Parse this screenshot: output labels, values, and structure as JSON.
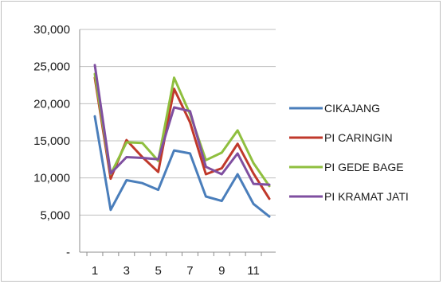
{
  "chart_data": {
    "type": "line",
    "title": "",
    "xlabel": "",
    "ylabel": "",
    "x": [
      1,
      2,
      3,
      4,
      5,
      6,
      7,
      8,
      9,
      10,
      11,
      12
    ],
    "x_tick_labels": [
      "1",
      "3",
      "5",
      "7",
      "9",
      "11"
    ],
    "x_tick_values": [
      1,
      3,
      5,
      7,
      9,
      11
    ],
    "ylim": [
      0,
      30000
    ],
    "y_tick_values": [
      0,
      5000,
      10000,
      15000,
      20000,
      25000,
      30000
    ],
    "y_tick_labels": [
      "-",
      "5,000",
      "10,000",
      "15,000",
      "20,000",
      "25,000",
      "30,000"
    ],
    "grid": "horizontal",
    "legend_position": "right",
    "series": [
      {
        "name": "CIKAJANG",
        "color": "#4a7ebb",
        "values": [
          18300,
          5700,
          9700,
          9300,
          8400,
          13700,
          13300,
          7500,
          6900,
          10500,
          6500,
          4800
        ]
      },
      {
        "name": "PI CARINGIN",
        "color": "#c0392b",
        "values": [
          23500,
          9900,
          15100,
          12800,
          10800,
          22000,
          17500,
          10500,
          11300,
          14600,
          10600,
          7200
        ]
      },
      {
        "name": "PI GEDE BAGE",
        "color": "#8fbf3f",
        "values": [
          24000,
          10500,
          14800,
          14700,
          12300,
          23500,
          18600,
          12400,
          13400,
          16400,
          12000,
          8900
        ]
      },
      {
        "name": "PI KRAMAT JATI",
        "color": "#7f4fa0",
        "values": [
          25200,
          10600,
          12800,
          12700,
          12500,
          19500,
          19000,
          11500,
          10500,
          13300,
          9200,
          9100
        ]
      }
    ]
  }
}
